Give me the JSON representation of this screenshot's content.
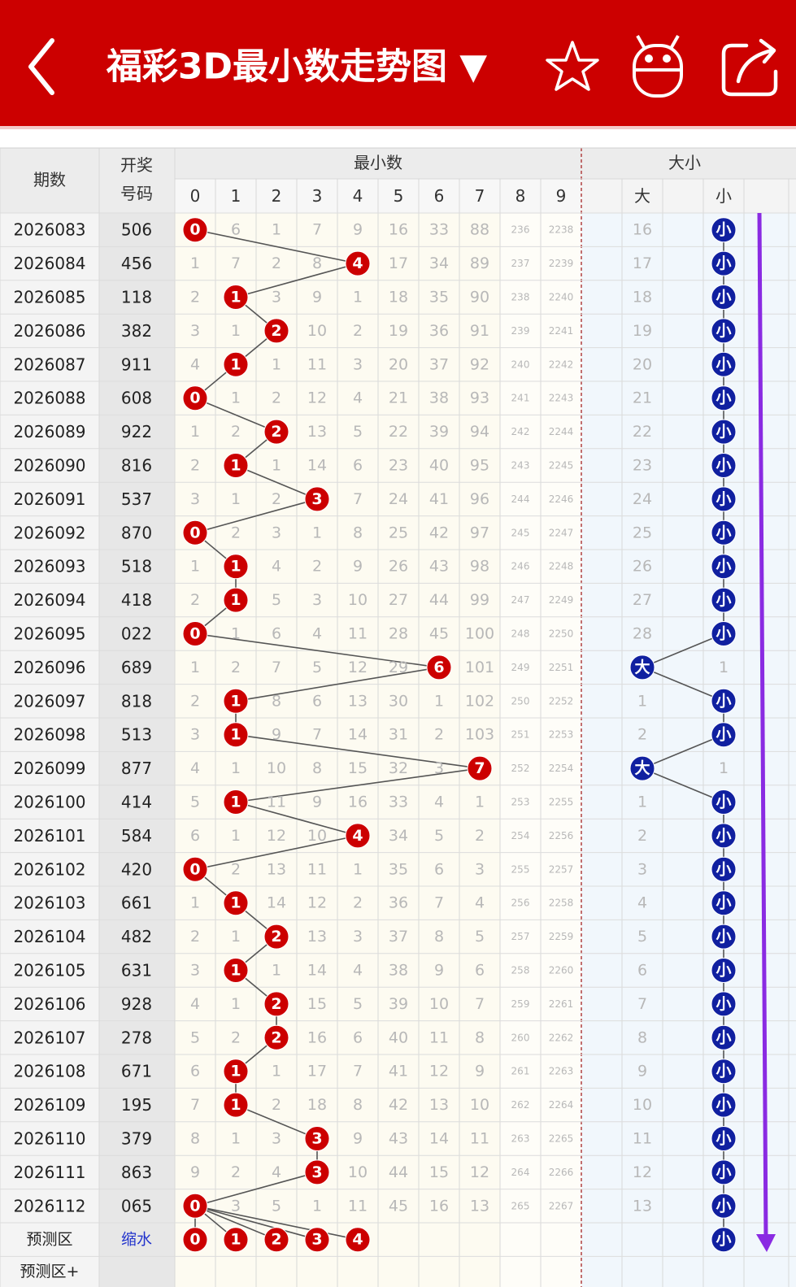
{
  "header": {
    "title": "福彩3D最小数走势图 ▼"
  },
  "table": {
    "columns": {
      "period": "期数",
      "number": [
        "开奖",
        "号码"
      ],
      "min_group": "最小数",
      "size_group": "大小",
      "digits": [
        0,
        1,
        2,
        3,
        4,
        5,
        6,
        7,
        8,
        9
      ],
      "big": "大",
      "small": "小"
    },
    "rows": [
      {
        "period": "2026083",
        "number": "506",
        "min": 0,
        "cells": [
          null,
          6,
          1,
          7,
          9,
          16,
          33,
          88,
          236,
          2238
        ],
        "size": "小",
        "omit": 16
      },
      {
        "period": "2026084",
        "number": "456",
        "min": 4,
        "cells": [
          1,
          7,
          2,
          8,
          null,
          17,
          34,
          89,
          237,
          2239
        ],
        "size": "小",
        "omit": 17
      },
      {
        "period": "2026085",
        "number": "118",
        "min": 1,
        "cells": [
          2,
          null,
          3,
          9,
          1,
          18,
          35,
          90,
          238,
          2240
        ],
        "size": "小",
        "omit": 18
      },
      {
        "period": "2026086",
        "number": "382",
        "min": 2,
        "cells": [
          3,
          1,
          null,
          10,
          2,
          19,
          36,
          91,
          239,
          2241
        ],
        "size": "小",
        "omit": 19
      },
      {
        "period": "2026087",
        "number": "911",
        "min": 1,
        "cells": [
          4,
          null,
          1,
          11,
          3,
          20,
          37,
          92,
          240,
          2242
        ],
        "size": "小",
        "omit": 20
      },
      {
        "period": "2026088",
        "number": "608",
        "min": 0,
        "cells": [
          null,
          1,
          2,
          12,
          4,
          21,
          38,
          93,
          241,
          2243
        ],
        "size": "小",
        "omit": 21
      },
      {
        "period": "2026089",
        "number": "922",
        "min": 2,
        "cells": [
          1,
          2,
          null,
          13,
          5,
          22,
          39,
          94,
          242,
          2244
        ],
        "size": "小",
        "omit": 22
      },
      {
        "period": "2026090",
        "number": "816",
        "min": 1,
        "cells": [
          2,
          null,
          1,
          14,
          6,
          23,
          40,
          95,
          243,
          2245
        ],
        "size": "小",
        "omit": 23
      },
      {
        "period": "2026091",
        "number": "537",
        "min": 3,
        "cells": [
          3,
          1,
          2,
          null,
          7,
          24,
          41,
          96,
          244,
          2246
        ],
        "size": "小",
        "omit": 24
      },
      {
        "period": "2026092",
        "number": "870",
        "min": 0,
        "cells": [
          null,
          2,
          3,
          1,
          8,
          25,
          42,
          97,
          245,
          2247
        ],
        "size": "小",
        "omit": 25
      },
      {
        "period": "2026093",
        "number": "518",
        "min": 1,
        "cells": [
          1,
          null,
          4,
          2,
          9,
          26,
          43,
          98,
          246,
          2248
        ],
        "size": "小",
        "omit": 26
      },
      {
        "period": "2026094",
        "number": "418",
        "min": 1,
        "cells": [
          2,
          null,
          5,
          3,
          10,
          27,
          44,
          99,
          247,
          2249
        ],
        "size": "小",
        "omit": 27
      },
      {
        "period": "2026095",
        "number": "022",
        "min": 0,
        "cells": [
          null,
          1,
          6,
          4,
          11,
          28,
          45,
          100,
          248,
          2250
        ],
        "size": "小",
        "omit": 28
      },
      {
        "period": "2026096",
        "number": "689",
        "min": 6,
        "cells": [
          1,
          2,
          7,
          5,
          12,
          29,
          null,
          101,
          249,
          2251
        ],
        "size": "大",
        "omit": 1
      },
      {
        "period": "2026097",
        "number": "818",
        "min": 1,
        "cells": [
          2,
          null,
          8,
          6,
          13,
          30,
          1,
          102,
          250,
          2252
        ],
        "size": "小",
        "omit": 1
      },
      {
        "period": "2026098",
        "number": "513",
        "min": 1,
        "cells": [
          3,
          null,
          9,
          7,
          14,
          31,
          2,
          103,
          251,
          2253
        ],
        "size": "小",
        "omit": 2
      },
      {
        "period": "2026099",
        "number": "877",
        "min": 7,
        "cells": [
          4,
          1,
          10,
          8,
          15,
          32,
          3,
          null,
          252,
          2254
        ],
        "size": "大",
        "omit": 1
      },
      {
        "period": "2026100",
        "number": "414",
        "min": 1,
        "cells": [
          5,
          null,
          11,
          9,
          16,
          33,
          4,
          1,
          253,
          2255
        ],
        "size": "小",
        "omit": 1
      },
      {
        "period": "2026101",
        "number": "584",
        "min": 4,
        "cells": [
          6,
          1,
          12,
          10,
          null,
          34,
          5,
          2,
          254,
          2256
        ],
        "size": "小",
        "omit": 2
      },
      {
        "period": "2026102",
        "number": "420",
        "min": 0,
        "cells": [
          null,
          2,
          13,
          11,
          1,
          35,
          6,
          3,
          255,
          2257
        ],
        "size": "小",
        "omit": 3
      },
      {
        "period": "2026103",
        "number": "661",
        "min": 1,
        "cells": [
          1,
          null,
          14,
          12,
          2,
          36,
          7,
          4,
          256,
          2258
        ],
        "size": "小",
        "omit": 4
      },
      {
        "period": "2026104",
        "number": "482",
        "min": 2,
        "cells": [
          2,
          1,
          null,
          13,
          3,
          37,
          8,
          5,
          257,
          2259
        ],
        "size": "小",
        "omit": 5
      },
      {
        "period": "2026105",
        "number": "631",
        "min": 1,
        "cells": [
          3,
          null,
          1,
          14,
          4,
          38,
          9,
          6,
          258,
          2260
        ],
        "size": "小",
        "omit": 6
      },
      {
        "period": "2026106",
        "number": "928",
        "min": 2,
        "cells": [
          4,
          1,
          null,
          15,
          5,
          39,
          10,
          7,
          259,
          2261
        ],
        "size": "小",
        "omit": 7
      },
      {
        "period": "2026107",
        "number": "278",
        "min": 2,
        "cells": [
          5,
          2,
          null,
          16,
          6,
          40,
          11,
          8,
          260,
          2262
        ],
        "size": "小",
        "omit": 8
      },
      {
        "period": "2026108",
        "number": "671",
        "min": 1,
        "cells": [
          6,
          null,
          1,
          17,
          7,
          41,
          12,
          9,
          261,
          2263
        ],
        "size": "小",
        "omit": 9
      },
      {
        "period": "2026109",
        "number": "195",
        "min": 1,
        "cells": [
          7,
          null,
          2,
          18,
          8,
          42,
          13,
          10,
          262,
          2264
        ],
        "size": "小",
        "omit": 10
      },
      {
        "period": "2026110",
        "number": "379",
        "min": 3,
        "cells": [
          8,
          1,
          3,
          null,
          9,
          43,
          14,
          11,
          263,
          2265
        ],
        "size": "小",
        "omit": 11
      },
      {
        "period": "2026111",
        "number": "863",
        "min": 3,
        "cells": [
          9,
          2,
          4,
          null,
          10,
          44,
          15,
          12,
          264,
          2266
        ],
        "size": "小",
        "omit": 12
      },
      {
        "period": "2026112",
        "number": "065",
        "min": 0,
        "cells": [
          null,
          3,
          5,
          1,
          11,
          45,
          16,
          13,
          265,
          2267
        ],
        "size": "小",
        "omit": 13
      }
    ],
    "predict": {
      "label": "预测区",
      "mode": "缩水",
      "balls": [
        0,
        1,
        2,
        3,
        4
      ],
      "size": "小"
    },
    "predict_plus": {
      "label": "预测区+"
    }
  }
}
